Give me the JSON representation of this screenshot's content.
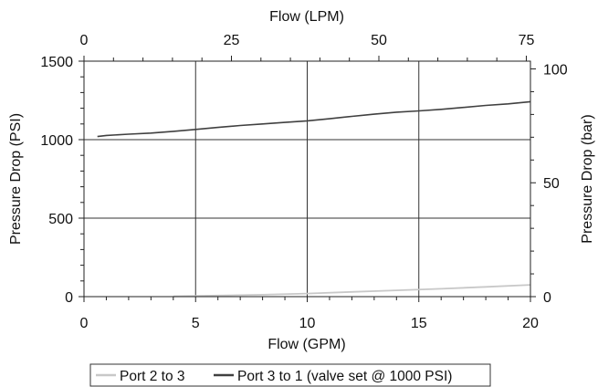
{
  "chart_data": {
    "type": "line",
    "title": "",
    "xlabel": "Flow (GPM)",
    "ylabel": "Pressure Drop (PSI)",
    "x_top_label": "Flow (LPM)",
    "y_right_label": "Pressure Drop (bar)",
    "xlim": [
      0,
      20
    ],
    "ylim": [
      0,
      1500
    ],
    "x_ticks": [
      0,
      5,
      10,
      15,
      20
    ],
    "y_ticks": [
      0,
      500,
      1000,
      1500
    ],
    "x_top_lim": [
      0,
      75.7
    ],
    "x_top_ticks": [
      0,
      25,
      50,
      75
    ],
    "y_right_lim": [
      0,
      103.4
    ],
    "y_right_ticks": [
      0,
      50,
      100
    ],
    "grid": "major, both axes",
    "legend_position": "bottom",
    "series": [
      {
        "name": "Port 2 to 3",
        "color": "#c8c8c8",
        "x": [
          4,
          6,
          8,
          10,
          12,
          14,
          16,
          18,
          20
        ],
        "y": [
          2,
          7,
          12,
          20,
          30,
          40,
          50,
          62,
          75
        ]
      },
      {
        "name": "Port 3 to 1 (valve set @ 1000 PSI)",
        "color": "#404040",
        "x": [
          0.6,
          1,
          2,
          3,
          4,
          5,
          6,
          7,
          8,
          9,
          10,
          11,
          12,
          13,
          14,
          15,
          16,
          17,
          18,
          19,
          20
        ],
        "y": [
          1020,
          1027,
          1035,
          1042,
          1053,
          1065,
          1078,
          1090,
          1100,
          1110,
          1120,
          1133,
          1148,
          1162,
          1175,
          1183,
          1193,
          1205,
          1218,
          1228,
          1242
        ]
      }
    ]
  }
}
